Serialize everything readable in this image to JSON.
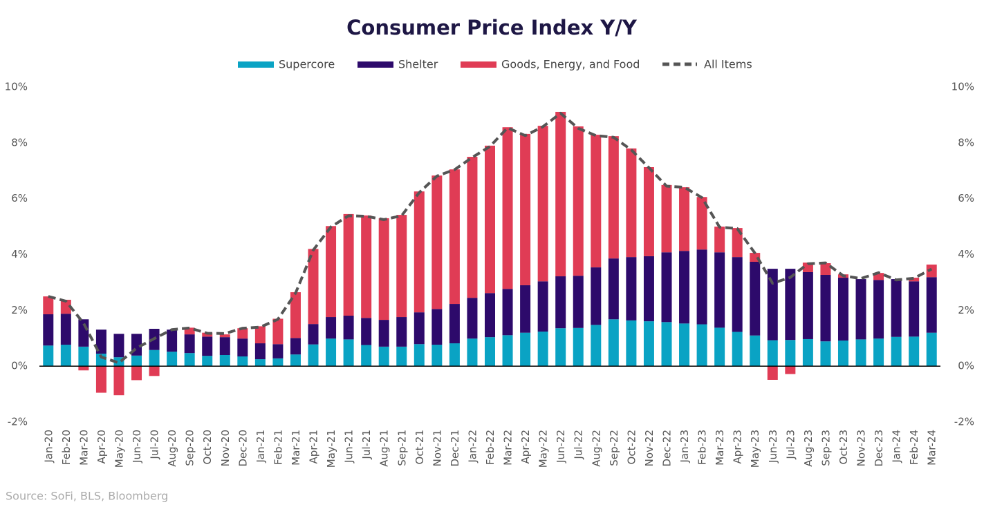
{
  "chart_data": {
    "type": "stacked_bar_line",
    "title": "Consumer Price Index Y/Y",
    "source": "Source: SoFi, BLS, Bloomberg",
    "categories": [
      "Jan-20",
      "Feb-20",
      "Mar-20",
      "Apr-20",
      "May-20",
      "Jun-20",
      "Jul-20",
      "Aug-20",
      "Sep-20",
      "Oct-20",
      "Nov-20",
      "Dec-20",
      "Jan-21",
      "Feb-21",
      "Mar-21",
      "Apr-21",
      "May-21",
      "Jun-21",
      "Jul-21",
      "Aug-21",
      "Sep-21",
      "Oct-21",
      "Nov-21",
      "Dec-21",
      "Jan-22",
      "Feb-22",
      "Mar-22",
      "Apr-22",
      "May-22",
      "Jun-22",
      "Jul-22",
      "Aug-22",
      "Sep-22",
      "Oct-22",
      "Nov-22",
      "Dec-22",
      "Jan-23",
      "Feb-23",
      "Mar-23",
      "Apr-23",
      "May-23",
      "Jun-23",
      "Jul-23",
      "Aug-23",
      "Sep-23",
      "Oct-23",
      "Nov-23",
      "Dec-23",
      "Jan-24",
      "Feb-24",
      "Mar-24"
    ],
    "series": [
      {
        "name": "Supercore",
        "type": "bar",
        "color": "#0aa3c4",
        "values": [
          0.74,
          0.77,
          0.7,
          0.45,
          0.32,
          0.38,
          0.58,
          0.52,
          0.47,
          0.37,
          0.4,
          0.35,
          0.25,
          0.28,
          0.42,
          0.78,
          0.99,
          0.96,
          0.76,
          0.7,
          0.7,
          0.79,
          0.77,
          0.82,
          0.99,
          1.04,
          1.11,
          1.2,
          1.24,
          1.36,
          1.37,
          1.48,
          1.68,
          1.64,
          1.61,
          1.58,
          1.53,
          1.5,
          1.38,
          1.23,
          1.1,
          0.93,
          0.94,
          0.97,
          0.89,
          0.92,
          0.96,
          0.99,
          1.05,
          1.06,
          1.2
        ]
      },
      {
        "name": "Shelter",
        "type": "bar",
        "color": "#2d0a6b",
        "values": [
          1.12,
          1.11,
          0.98,
          0.86,
          0.84,
          0.78,
          0.76,
          0.79,
          0.67,
          0.69,
          0.64,
          0.64,
          0.57,
          0.51,
          0.59,
          0.73,
          0.77,
          0.85,
          0.97,
          0.96,
          1.06,
          1.14,
          1.28,
          1.41,
          1.46,
          1.58,
          1.66,
          1.7,
          1.8,
          1.86,
          1.87,
          2.06,
          2.18,
          2.27,
          2.33,
          2.5,
          2.6,
          2.68,
          2.7,
          2.68,
          2.64,
          2.56,
          2.55,
          2.4,
          2.38,
          2.25,
          2.16,
          2.1,
          2.07,
          1.98,
          1.99
        ]
      },
      {
        "name": "Goods, Energy, and Food",
        "type": "bar",
        "color": "#e03c55",
        "values": [
          0.64,
          0.5,
          -0.15,
          -0.95,
          -1.04,
          -0.5,
          -0.35,
          0,
          0.24,
          0.14,
          0.1,
          0.37,
          0.61,
          0.91,
          1.64,
          2.69,
          3.26,
          3.64,
          3.67,
          3.64,
          3.66,
          4.33,
          4.78,
          4.82,
          5.05,
          5.28,
          5.79,
          5.42,
          5.57,
          5.89,
          5.35,
          4.75,
          4.38,
          3.89,
          3.19,
          2.41,
          2.28,
          1.88,
          0.92,
          1.04,
          0.32,
          -0.49,
          -0.28,
          0.34,
          0.42,
          0.12,
          0,
          0.25,
          0,
          0.13,
          0.45
        ]
      },
      {
        "name": "All Items",
        "type": "line",
        "color": "#555555",
        "values": [
          2.5,
          2.33,
          1.54,
          0.33,
          0.12,
          0.65,
          0.99,
          1.31,
          1.37,
          1.18,
          1.17,
          1.36,
          1.4,
          1.68,
          2.62,
          4.16,
          4.99,
          5.39,
          5.37,
          5.25,
          5.39,
          6.22,
          6.81,
          7.04,
          7.48,
          7.87,
          8.54,
          8.26,
          8.58,
          9.06,
          8.52,
          8.26,
          8.2,
          7.75,
          7.11,
          6.45,
          6.41,
          6.04,
          4.98,
          4.93,
          4.05,
          2.97,
          3.18,
          3.67,
          3.7,
          3.24,
          3.14,
          3.35,
          3.09,
          3.15,
          3.48
        ]
      }
    ],
    "ylim": [
      -2,
      10
    ],
    "yticks": [
      {
        "value": -2,
        "label": "-2%"
      },
      {
        "value": 0,
        "label": "0%"
      },
      {
        "value": 2,
        "label": "2%"
      },
      {
        "value": 4,
        "label": "4%"
      },
      {
        "value": 6,
        "label": "6%"
      },
      {
        "value": 8,
        "label": "8%"
      },
      {
        "value": 10,
        "label": "10%"
      }
    ],
    "y2lim": [
      -2,
      10
    ],
    "y2ticks": [
      {
        "value": -2,
        "label": "-2%"
      },
      {
        "value": 0,
        "label": "0%"
      },
      {
        "value": 2,
        "label": "2%"
      },
      {
        "value": 4,
        "label": "4%"
      },
      {
        "value": 6,
        "label": "6%"
      },
      {
        "value": 8,
        "label": "8%"
      },
      {
        "value": 10,
        "label": "10%"
      }
    ],
    "grid": false,
    "legend": "top"
  }
}
